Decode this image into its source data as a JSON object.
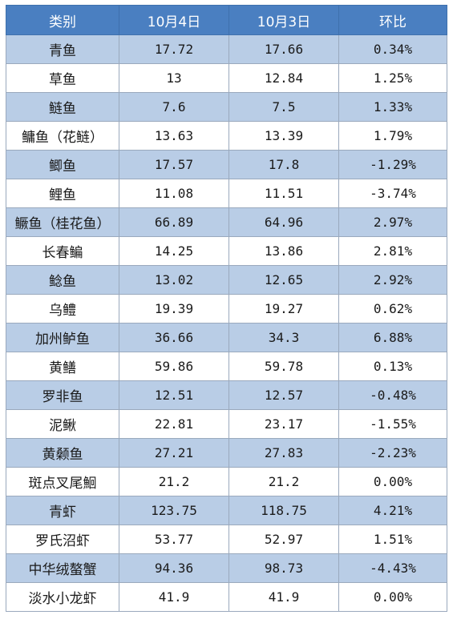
{
  "headers": [
    "类别",
    "10月4日",
    "10月3日",
    "环比"
  ],
  "rows": [
    [
      "青鱼",
      "17.72",
      "17.66",
      "0.34%"
    ],
    [
      "草鱼",
      "13",
      "12.84",
      "1.25%"
    ],
    [
      "鲢鱼",
      "7.6",
      "7.5",
      "1.33%"
    ],
    [
      "鳙鱼（花鲢）",
      "13.63",
      "13.39",
      "1.79%"
    ],
    [
      "鲫鱼",
      "17.57",
      "17.8",
      "-1.29%"
    ],
    [
      "鲤鱼",
      "11.08",
      "11.51",
      "-3.74%"
    ],
    [
      "鳜鱼（桂花鱼）",
      "66.89",
      "64.96",
      "2.97%"
    ],
    [
      "长春鳊",
      "14.25",
      "13.86",
      "2.81%"
    ],
    [
      "鲶鱼",
      "13.02",
      "12.65",
      "2.92%"
    ],
    [
      "乌鳢",
      "19.39",
      "19.27",
      "0.62%"
    ],
    [
      "加州鲈鱼",
      "36.66",
      "34.3",
      "6.88%"
    ],
    [
      "黄鳝",
      "59.86",
      "59.78",
      "0.13%"
    ],
    [
      "罗非鱼",
      "12.51",
      "12.57",
      "-0.48%"
    ],
    [
      "泥鳅",
      "22.81",
      "23.17",
      "-1.55%"
    ],
    [
      "黄颡鱼",
      "27.21",
      "27.83",
      "-2.23%"
    ],
    [
      "斑点叉尾鮰",
      "21.2",
      "21.2",
      "0.00%"
    ],
    [
      "青虾",
      "123.75",
      "118.75",
      "4.21%"
    ],
    [
      "罗氏沼虾",
      "53.77",
      "52.97",
      "1.51%"
    ],
    [
      "中华绒螯蟹",
      "94.36",
      "98.73",
      "-4.43%"
    ],
    [
      "淡水小龙虾",
      "41.9",
      "41.9",
      "0.00%"
    ]
  ],
  "colors": {
    "header_bg": "#4a7fc1",
    "stripe_bg": "#b9cde6",
    "plain_bg": "#ffffff"
  }
}
